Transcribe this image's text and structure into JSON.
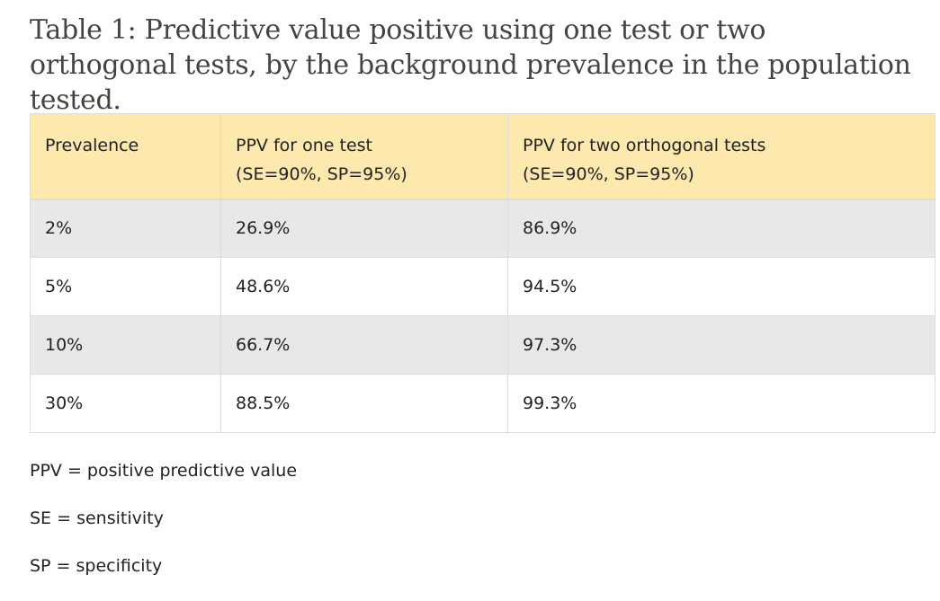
{
  "caption": "Table 1: Predictive value positive using one test or two orthogonal tests, by the background prevalence in the population tested.",
  "table": {
    "headers": [
      {
        "line1": "Prevalence",
        "line2": ""
      },
      {
        "line1": "PPV for one test",
        "line2": "(SE=90%, SP=95%)"
      },
      {
        "line1": "PPV for two orthogonal tests",
        "line2": "(SE=90%, SP=95%)"
      }
    ],
    "rows": [
      [
        "2%",
        "26.9%",
        "86.9%"
      ],
      [
        "5%",
        "48.6%",
        "94.5%"
      ],
      [
        "10%",
        "66.7%",
        "97.3%"
      ],
      [
        "30%",
        "88.5%",
        "99.3%"
      ]
    ],
    "header_color": "#fde8ae",
    "stripe_color": "#e8e8e8"
  },
  "notes": [
    "PPV = positive predictive value",
    "SE = sensitivity",
    "SP = specificity"
  ]
}
